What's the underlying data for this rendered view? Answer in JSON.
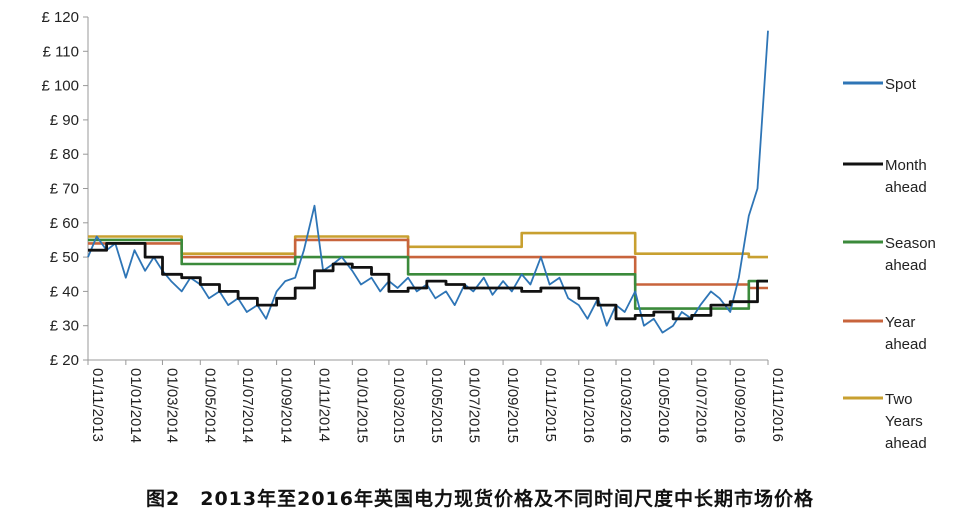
{
  "caption": "图2　2013年至2016年英国电力现货价格及不同时间尺度中长期市场价格",
  "chart_data": {
    "type": "line",
    "ylim": [
      20,
      120
    ],
    "yticks": [
      20,
      30,
      40,
      50,
      60,
      70,
      80,
      90,
      100,
      110,
      120
    ],
    "ytick_labels": [
      "£ 20",
      "£ 30",
      "£ 40",
      "£ 50",
      "£ 60",
      "£ 70",
      "£ 80",
      "£ 90",
      "£ 100",
      "£ 110",
      "£ 120"
    ],
    "xlim": [
      "2013-11-01",
      "2016-11-01"
    ],
    "xticks": [
      "01/11/2013",
      "01/01/2014",
      "01/03/2014",
      "01/05/2014",
      "01/07/2014",
      "01/09/2014",
      "01/11/2014",
      "01/01/2015",
      "01/03/2015",
      "01/05/2015",
      "01/07/2015",
      "01/09/2015",
      "01/11/2015",
      "01/01/2016",
      "01/03/2016",
      "01/05/2016",
      "01/07/2016",
      "01/09/2016",
      "01/11/2016"
    ],
    "grid": false,
    "legend_position": "right",
    "colors": {
      "spot": "#2e75b6",
      "month": "#111111",
      "season": "#3b8a3b",
      "year": "#c8643c",
      "twoyear": "#c8a030",
      "axis": "#999999"
    },
    "series": [
      {
        "name": "Spot",
        "key": "spot",
        "x": [
          "2013-11-01",
          "2013-11-15",
          "2013-12-01",
          "2013-12-15",
          "2014-01-01",
          "2014-01-15",
          "2014-02-01",
          "2014-02-15",
          "2014-03-01",
          "2014-03-15",
          "2014-04-01",
          "2014-04-15",
          "2014-05-01",
          "2014-05-15",
          "2014-06-01",
          "2014-06-15",
          "2014-07-01",
          "2014-07-15",
          "2014-08-01",
          "2014-08-15",
          "2014-09-01",
          "2014-09-15",
          "2014-10-01",
          "2014-10-15",
          "2014-11-01",
          "2014-11-15",
          "2014-12-01",
          "2014-12-15",
          "2015-01-01",
          "2015-01-15",
          "2015-02-01",
          "2015-02-15",
          "2015-03-01",
          "2015-03-15",
          "2015-04-01",
          "2015-04-15",
          "2015-05-01",
          "2015-05-15",
          "2015-06-01",
          "2015-06-15",
          "2015-07-01",
          "2015-07-15",
          "2015-08-01",
          "2015-08-15",
          "2015-09-01",
          "2015-09-15",
          "2015-10-01",
          "2015-10-15",
          "2015-11-01",
          "2015-11-15",
          "2015-12-01",
          "2015-12-15",
          "2016-01-01",
          "2016-01-15",
          "2016-02-01",
          "2016-02-15",
          "2016-03-01",
          "2016-03-15",
          "2016-04-01",
          "2016-04-15",
          "2016-05-01",
          "2016-05-15",
          "2016-06-01",
          "2016-06-15",
          "2016-07-01",
          "2016-07-15",
          "2016-08-01",
          "2016-08-15",
          "2016-09-01",
          "2016-09-15",
          "2016-10-01",
          "2016-10-15",
          "2016-11-01"
        ],
        "values": [
          50,
          56,
          52,
          54,
          44,
          52,
          46,
          50,
          46,
          43,
          40,
          44,
          42,
          38,
          40,
          36,
          38,
          34,
          36,
          32,
          40,
          43,
          44,
          52,
          65,
          46,
          48,
          50,
          46,
          42,
          44,
          40,
          43,
          41,
          44,
          40,
          42,
          38,
          40,
          36,
          42,
          40,
          44,
          39,
          43,
          40,
          45,
          42,
          50,
          42,
          44,
          38,
          36,
          32,
          38,
          30,
          36,
          34,
          40,
          30,
          32,
          28,
          30,
          34,
          32,
          36,
          40,
          38,
          34,
          44,
          62,
          70,
          116
        ]
      },
      {
        "name": "Month ahead",
        "key": "month",
        "x": [
          "2013-11-01",
          "2013-12-01",
          "2014-01-01",
          "2014-02-01",
          "2014-03-01",
          "2014-04-01",
          "2014-05-01",
          "2014-06-01",
          "2014-07-01",
          "2014-08-01",
          "2014-09-01",
          "2014-10-01",
          "2014-11-01",
          "2014-12-01",
          "2015-01-01",
          "2015-02-01",
          "2015-03-01",
          "2015-04-01",
          "2015-05-01",
          "2015-06-01",
          "2015-07-01",
          "2015-08-01",
          "2015-09-01",
          "2015-10-01",
          "2015-11-01",
          "2015-12-01",
          "2016-01-01",
          "2016-02-01",
          "2016-03-01",
          "2016-04-01",
          "2016-05-01",
          "2016-06-01",
          "2016-07-01",
          "2016-08-01",
          "2016-09-01",
          "2016-10-01",
          "2016-10-15"
        ],
        "values": [
          52,
          54,
          54,
          50,
          45,
          44,
          42,
          40,
          38,
          36,
          38,
          41,
          46,
          48,
          47,
          45,
          40,
          41,
          43,
          42,
          41,
          41,
          41,
          40,
          41,
          41,
          38,
          36,
          32,
          33,
          34,
          32,
          33,
          36,
          37,
          37,
          43
        ]
      },
      {
        "name": "Season ahead",
        "key": "season",
        "x": [
          "2013-11-01",
          "2014-04-01",
          "2014-10-01",
          "2015-04-01",
          "2015-10-01",
          "2016-04-01",
          "2016-10-01"
        ],
        "values": [
          55,
          48,
          50,
          45,
          45,
          35,
          43
        ]
      },
      {
        "name": "Year ahead",
        "key": "year",
        "x": [
          "2013-11-01",
          "2014-04-01",
          "2014-10-01",
          "2015-04-01",
          "2015-10-01",
          "2016-04-01",
          "2016-10-01"
        ],
        "values": [
          54,
          50,
          55,
          50,
          50,
          42,
          41
        ]
      },
      {
        "name": "Two Years ahead",
        "key": "twoyear",
        "x": [
          "2013-11-01",
          "2014-04-01",
          "2014-10-01",
          "2015-04-01",
          "2015-10-01",
          "2016-04-01",
          "2016-10-01"
        ],
        "values": [
          56,
          51,
          56,
          53,
          57,
          51,
          50
        ]
      }
    ],
    "legend": [
      {
        "key": "spot",
        "lines": [
          "Spot"
        ]
      },
      {
        "key": "month",
        "lines": [
          "Month",
          "ahead"
        ]
      },
      {
        "key": "season",
        "lines": [
          "Season",
          "ahead"
        ]
      },
      {
        "key": "year",
        "lines": [
          "Year",
          "ahead"
        ]
      },
      {
        "key": "twoyear",
        "lines": [
          "Two",
          "Years",
          "ahead"
        ]
      }
    ]
  }
}
